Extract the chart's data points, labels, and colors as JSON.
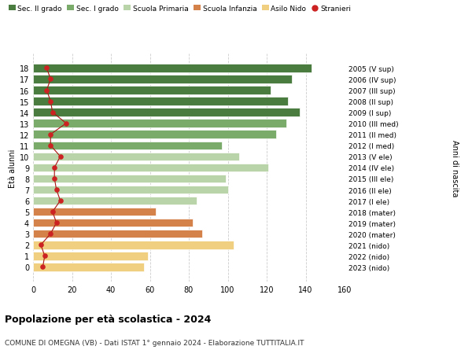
{
  "ages": [
    18,
    17,
    16,
    15,
    14,
    13,
    12,
    11,
    10,
    9,
    8,
    7,
    6,
    5,
    4,
    3,
    2,
    1,
    0
  ],
  "right_labels": [
    "2005 (V sup)",
    "2006 (IV sup)",
    "2007 (III sup)",
    "2008 (II sup)",
    "2009 (I sup)",
    "2010 (III med)",
    "2011 (II med)",
    "2012 (I med)",
    "2013 (V ele)",
    "2014 (IV ele)",
    "2015 (III ele)",
    "2016 (II ele)",
    "2017 (I ele)",
    "2018 (mater)",
    "2019 (mater)",
    "2020 (mater)",
    "2021 (nido)",
    "2022 (nido)",
    "2023 (nido)"
  ],
  "bar_values": [
    143,
    133,
    122,
    131,
    137,
    130,
    125,
    97,
    106,
    121,
    99,
    100,
    84,
    63,
    82,
    87,
    103,
    59,
    57
  ],
  "stranieri_values": [
    7,
    9,
    7,
    9,
    10,
    17,
    9,
    9,
    14,
    11,
    11,
    12,
    14,
    10,
    12,
    9,
    4,
    6,
    5
  ],
  "bar_colors": [
    "#4a7c3f",
    "#4a7c3f",
    "#4a7c3f",
    "#4a7c3f",
    "#4a7c3f",
    "#7aab6a",
    "#7aab6a",
    "#7aab6a",
    "#b8d4a8",
    "#b8d4a8",
    "#b8d4a8",
    "#b8d4a8",
    "#b8d4a8",
    "#d4814a",
    "#d4814a",
    "#d4814a",
    "#f0d080",
    "#f0d080",
    "#f0d080"
  ],
  "legend_labels": [
    "Sec. II grado",
    "Sec. I grado",
    "Scuola Primaria",
    "Scuola Infanzia",
    "Asilo Nido",
    "Stranieri"
  ],
  "legend_colors": [
    "#4a7c3f",
    "#7aab6a",
    "#b8d4a8",
    "#d4814a",
    "#f0d080",
    "#cc2222"
  ],
  "xlabel_left": "Età alunni",
  "xlabel_right": "Anni di nascita",
  "title": "Popolazione per età scolastica - 2024",
  "subtitle": "COMUNE DI OMEGNA (VB) - Dati ISTAT 1° gennaio 2024 - Elaborazione TUTTITALIA.IT",
  "xlim": [
    0,
    160
  ],
  "xticks": [
    0,
    20,
    40,
    60,
    80,
    100,
    120,
    140,
    160
  ],
  "bg_color": "#ffffff",
  "grid_color": "#cccccc",
  "stranieri_color": "#cc2222",
  "stranieri_line_color": "#aa1111"
}
